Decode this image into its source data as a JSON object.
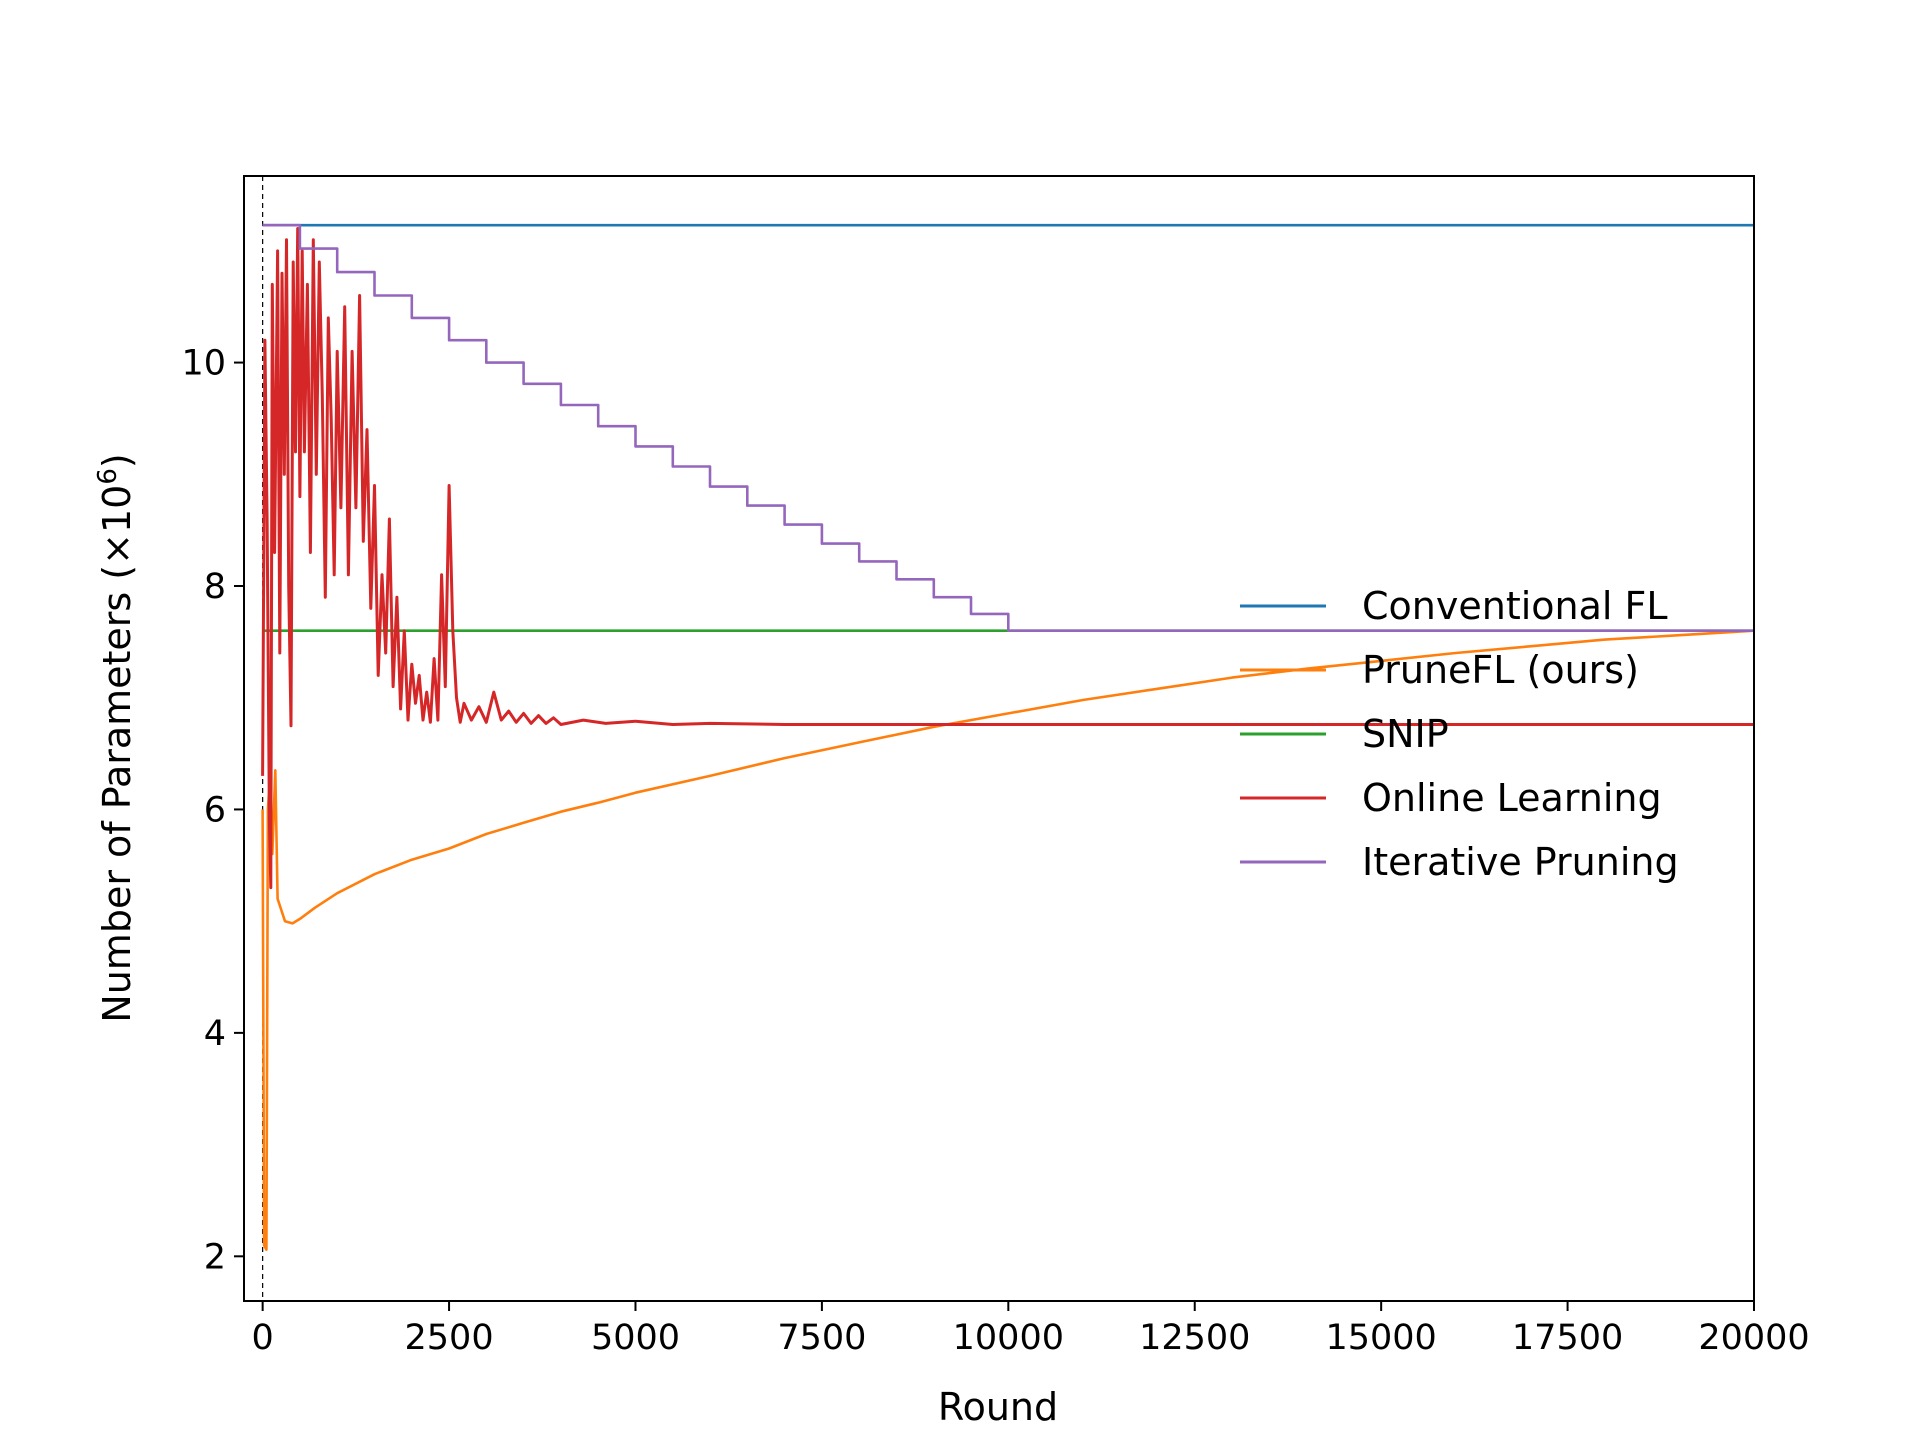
{
  "chart_data": {
    "type": "line",
    "title": "",
    "xlabel": "Round",
    "ylabel": "Number of Parameters (×10",
    "ylabel_sup": "6",
    "ylabel_close": ")",
    "xlim": [
      -250,
      20000
    ],
    "ylim": [
      1.6,
      11.67
    ],
    "xticks": [
      0,
      2500,
      5000,
      7500,
      10000,
      12500,
      15000,
      17500,
      20000
    ],
    "xtick_labels": [
      "0",
      "2500",
      "5000",
      "7500",
      "10000",
      "12500",
      "15000",
      "17500",
      "20000"
    ],
    "yticks": [
      2,
      4,
      6,
      8,
      10
    ],
    "ytick_labels": [
      "2",
      "4",
      "6",
      "8",
      "10"
    ],
    "vline_x": 0,
    "grid": false,
    "legend_position": "center-right",
    "series": [
      {
        "name": "Conventional FL",
        "color": "#1f77b4",
        "points": [
          [
            0,
            11.23
          ],
          [
            20000,
            11.23
          ]
        ]
      },
      {
        "name": "PruneFL (ours)",
        "color": "#ff7f0e",
        "points": [
          [
            0,
            6.0
          ],
          [
            20,
            2.1
          ],
          [
            50,
            2.06
          ],
          [
            70,
            6.0
          ],
          [
            100,
            6.3
          ],
          [
            130,
            5.6
          ],
          [
            170,
            6.35
          ],
          [
            200,
            5.2
          ],
          [
            250,
            5.1
          ],
          [
            300,
            5.0
          ],
          [
            400,
            4.98
          ],
          [
            500,
            5.02
          ],
          [
            700,
            5.12
          ],
          [
            1000,
            5.25
          ],
          [
            1500,
            5.42
          ],
          [
            2000,
            5.55
          ],
          [
            2500,
            5.65
          ],
          [
            3000,
            5.78
          ],
          [
            3500,
            5.88
          ],
          [
            4000,
            5.98
          ],
          [
            4500,
            6.06
          ],
          [
            5000,
            6.15
          ],
          [
            6000,
            6.3
          ],
          [
            7000,
            6.46
          ],
          [
            8000,
            6.6
          ],
          [
            9000,
            6.74
          ],
          [
            10000,
            6.86
          ],
          [
            11000,
            6.98
          ],
          [
            12000,
            7.08
          ],
          [
            13000,
            7.18
          ],
          [
            14000,
            7.26
          ],
          [
            15000,
            7.33
          ],
          [
            16000,
            7.4
          ],
          [
            17000,
            7.46
          ],
          [
            18000,
            7.52
          ],
          [
            19000,
            7.56
          ],
          [
            20000,
            7.6
          ]
        ]
      },
      {
        "name": "SNIP",
        "color": "#2ca02c",
        "points": [
          [
            0,
            7.6
          ],
          [
            20000,
            7.6
          ]
        ]
      },
      {
        "name": "Online Learning",
        "color": "#d62728",
        "points": [
          [
            0,
            6.3
          ],
          [
            30,
            10.2
          ],
          [
            60,
            8.6
          ],
          [
            90,
            5.9
          ],
          [
            110,
            5.3
          ],
          [
            130,
            10.7
          ],
          [
            160,
            8.3
          ],
          [
            200,
            11.0
          ],
          [
            230,
            7.4
          ],
          [
            260,
            10.8
          ],
          [
            290,
            9.0
          ],
          [
            320,
            11.1
          ],
          [
            350,
            8.0
          ],
          [
            380,
            6.75
          ],
          [
            410,
            10.9
          ],
          [
            440,
            9.2
          ],
          [
            470,
            11.2
          ],
          [
            500,
            8.8
          ],
          [
            530,
            11.0
          ],
          [
            560,
            9.2
          ],
          [
            600,
            10.7
          ],
          [
            640,
            8.3
          ],
          [
            680,
            11.1
          ],
          [
            720,
            9.0
          ],
          [
            760,
            10.9
          ],
          [
            800,
            9.7
          ],
          [
            840,
            7.9
          ],
          [
            880,
            10.4
          ],
          [
            920,
            9.5
          ],
          [
            960,
            8.1
          ],
          [
            1000,
            10.1
          ],
          [
            1050,
            8.7
          ],
          [
            1100,
            10.5
          ],
          [
            1150,
            8.1
          ],
          [
            1200,
            10.1
          ],
          [
            1250,
            8.7
          ],
          [
            1300,
            10.6
          ],
          [
            1350,
            8.4
          ],
          [
            1400,
            9.4
          ],
          [
            1450,
            7.8
          ],
          [
            1500,
            8.9
          ],
          [
            1550,
            7.2
          ],
          [
            1600,
            8.1
          ],
          [
            1650,
            7.4
          ],
          [
            1700,
            8.6
          ],
          [
            1750,
            7.1
          ],
          [
            1800,
            7.9
          ],
          [
            1850,
            6.9
          ],
          [
            1900,
            7.6
          ],
          [
            1950,
            6.8
          ],
          [
            2000,
            7.3
          ],
          [
            2050,
            6.95
          ],
          [
            2100,
            7.2
          ],
          [
            2150,
            6.8
          ],
          [
            2200,
            7.05
          ],
          [
            2250,
            6.78
          ],
          [
            2300,
            7.35
          ],
          [
            2350,
            6.8
          ],
          [
            2400,
            8.1
          ],
          [
            2450,
            7.1
          ],
          [
            2500,
            8.9
          ],
          [
            2550,
            7.6
          ],
          [
            2600,
            7.0
          ],
          [
            2650,
            6.78
          ],
          [
            2700,
            6.95
          ],
          [
            2800,
            6.8
          ],
          [
            2900,
            6.92
          ],
          [
            3000,
            6.78
          ],
          [
            3100,
            7.05
          ],
          [
            3200,
            6.8
          ],
          [
            3300,
            6.88
          ],
          [
            3400,
            6.78
          ],
          [
            3500,
            6.86
          ],
          [
            3600,
            6.77
          ],
          [
            3700,
            6.84
          ],
          [
            3800,
            6.77
          ],
          [
            3900,
            6.82
          ],
          [
            4000,
            6.76
          ],
          [
            4300,
            6.8
          ],
          [
            4600,
            6.77
          ],
          [
            5000,
            6.79
          ],
          [
            5500,
            6.76
          ],
          [
            6000,
            6.77
          ],
          [
            7000,
            6.76
          ],
          [
            8000,
            6.76
          ],
          [
            9000,
            6.76
          ],
          [
            10000,
            6.76
          ],
          [
            20000,
            6.76
          ]
        ]
      },
      {
        "name": "Iterative Pruning",
        "color": "#9467bd",
        "points": [
          [
            0,
            11.23
          ],
          [
            500,
            11.23
          ],
          [
            500,
            11.02
          ],
          [
            1000,
            11.02
          ],
          [
            1000,
            10.81
          ],
          [
            1500,
            10.81
          ],
          [
            1500,
            10.6
          ],
          [
            2000,
            10.6
          ],
          [
            2000,
            10.4
          ],
          [
            2500,
            10.4
          ],
          [
            2500,
            10.2
          ],
          [
            3000,
            10.2
          ],
          [
            3000,
            10.0
          ],
          [
            3500,
            10.0
          ],
          [
            3500,
            9.81
          ],
          [
            4000,
            9.81
          ],
          [
            4000,
            9.62
          ],
          [
            4500,
            9.62
          ],
          [
            4500,
            9.43
          ],
          [
            5000,
            9.43
          ],
          [
            5000,
            9.25
          ],
          [
            5500,
            9.25
          ],
          [
            5500,
            9.07
          ],
          [
            6000,
            9.07
          ],
          [
            6000,
            8.89
          ],
          [
            6500,
            8.89
          ],
          [
            6500,
            8.72
          ],
          [
            7000,
            8.72
          ],
          [
            7000,
            8.55
          ],
          [
            7500,
            8.55
          ],
          [
            7500,
            8.38
          ],
          [
            8000,
            8.38
          ],
          [
            8000,
            8.22
          ],
          [
            8500,
            8.22
          ],
          [
            8500,
            8.06
          ],
          [
            9000,
            8.06
          ],
          [
            9000,
            7.9
          ],
          [
            9500,
            7.9
          ],
          [
            9500,
            7.75
          ],
          [
            10000,
            7.75
          ],
          [
            10000,
            7.6
          ],
          [
            20000,
            7.6
          ]
        ]
      }
    ]
  }
}
